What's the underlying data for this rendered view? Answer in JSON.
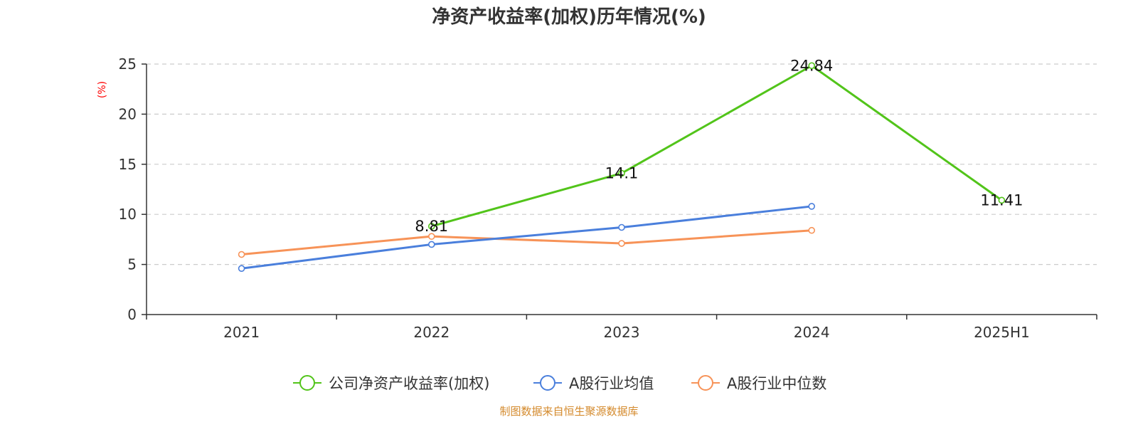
{
  "chart_data": {
    "type": "line",
    "title": "净资产收益率(加权)历年情况(%)",
    "ylabel": "(%)",
    "categories": [
      "2021",
      "2022",
      "2023",
      "2024",
      "2025H1"
    ],
    "ylim": [
      0,
      25
    ],
    "yticks": [
      0,
      5,
      10,
      15,
      20,
      25
    ],
    "grid": true,
    "legend_position": "bottom",
    "series": [
      {
        "name": "公司净资产收益率(加权)",
        "color": "#52c41a",
        "values": [
          null,
          8.81,
          14.1,
          24.84,
          11.41
        ],
        "labels": [
          "",
          "8.81",
          "14.1",
          "24.84",
          "11.41"
        ]
      },
      {
        "name": "A股行业均值",
        "color": "#4a7fdc",
        "values": [
          4.6,
          7.0,
          8.7,
          10.8,
          null
        ]
      },
      {
        "name": "A股行业中位数",
        "color": "#f79358",
        "values": [
          6.0,
          7.8,
          7.1,
          8.4,
          null
        ]
      }
    ],
    "source": "制图数据来自恒生聚源数据库"
  }
}
